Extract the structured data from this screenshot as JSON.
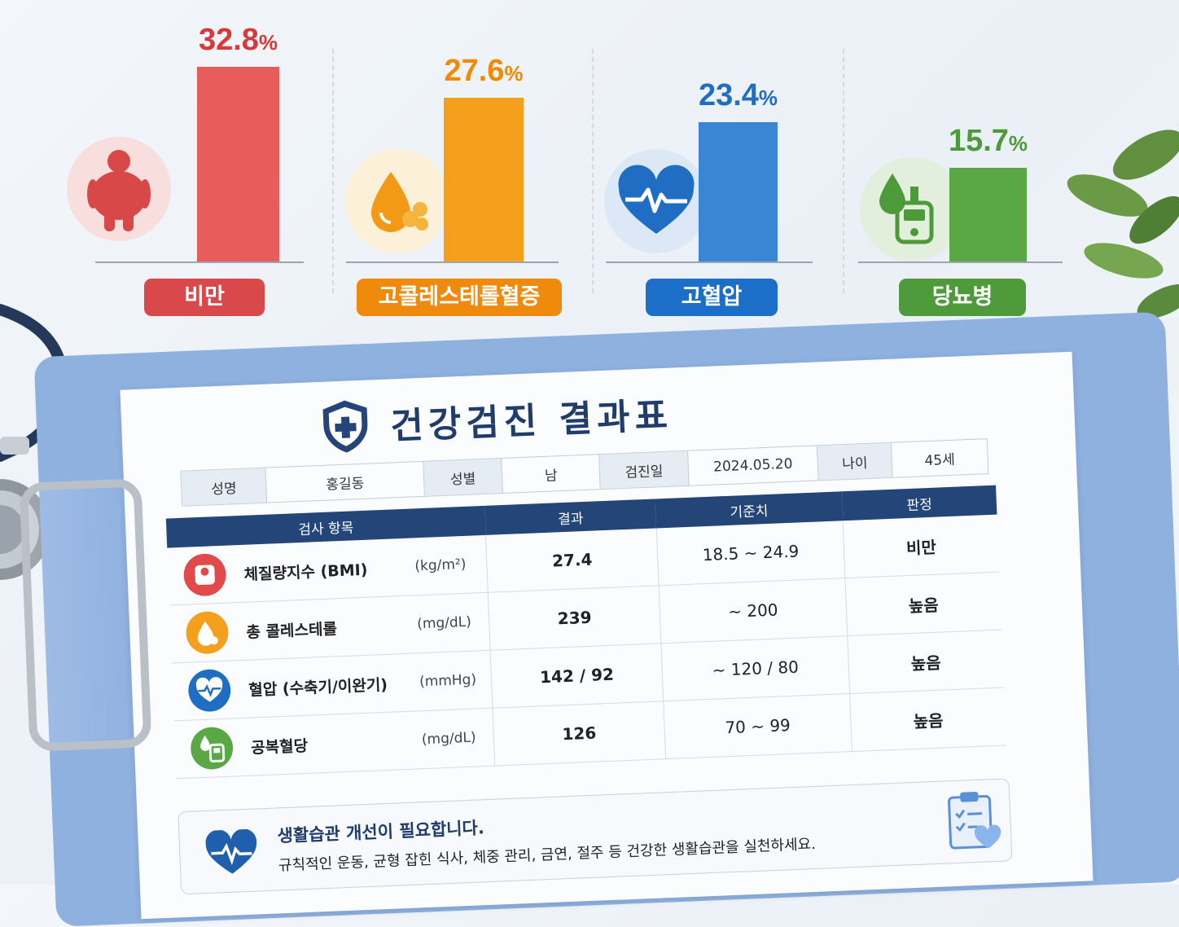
{
  "chart_data": {
    "type": "bar",
    "categories": [
      "비만",
      "고콜레스테롤혈증",
      "고혈압",
      "당뇨병"
    ],
    "values": [
      32.8,
      27.6,
      23.4,
      15.7
    ],
    "value_labels": [
      "32.8",
      "27.6",
      "23.4",
      "15.7"
    ],
    "unit": "%",
    "colors": [
      "#e85c5c",
      "#f5a01c",
      "#3a86d4",
      "#5aa845"
    ],
    "label_colors": [
      "#d63a3a",
      "#f08a00",
      "#1f6ec4",
      "#4d9a3a"
    ],
    "pill_colors": [
      "#d9484a",
      "#f08a0c",
      "#1c6fc8",
      "#4f9b3c"
    ],
    "icons": [
      "obesity-icon",
      "cholesterol-drop-icon",
      "heart-pulse-icon",
      "glucose-meter-icon"
    ]
  },
  "document": {
    "title": "건강검진 결과표",
    "info": {
      "name_label": "성명",
      "name": "홍길동",
      "sex_label": "성별",
      "sex": "남",
      "date_label": "검진일",
      "date": "2024.05.20",
      "age_label": "나이",
      "age": "45세"
    },
    "table": {
      "headers": [
        "검사 항목",
        "결과",
        "기준치",
        "판정"
      ],
      "rows": [
        {
          "item": "체질량지수 (BMI)",
          "unit": "(kg/m²)",
          "result": "27.4",
          "reference": "18.5 ~ 24.9",
          "judgment": "비만",
          "icon": "scale-icon"
        },
        {
          "item": "총 콜레스테롤",
          "unit": "(mg/dL)",
          "result": "239",
          "reference": "~ 200",
          "judgment": "높음",
          "icon": "cholesterol-drop-icon"
        },
        {
          "item": "혈압 (수축기/이완기)",
          "unit": "(mmHg)",
          "result": "142 / 92",
          "reference": "~ 120 / 80",
          "judgment": "높음",
          "icon": "heart-pulse-icon"
        },
        {
          "item": "공복혈당",
          "unit": "(mg/dL)",
          "result": "126",
          "reference": "70 ~ 99",
          "judgment": "높음",
          "icon": "glucose-meter-icon"
        }
      ]
    },
    "advice": {
      "title": "생활습관 개선이 필요합니다.",
      "text": "규칙적인 운동, 균형 잡힌 식사, 체중 관리, 금연, 절주 등 건강한 생활습관을 실천하세요."
    }
  }
}
